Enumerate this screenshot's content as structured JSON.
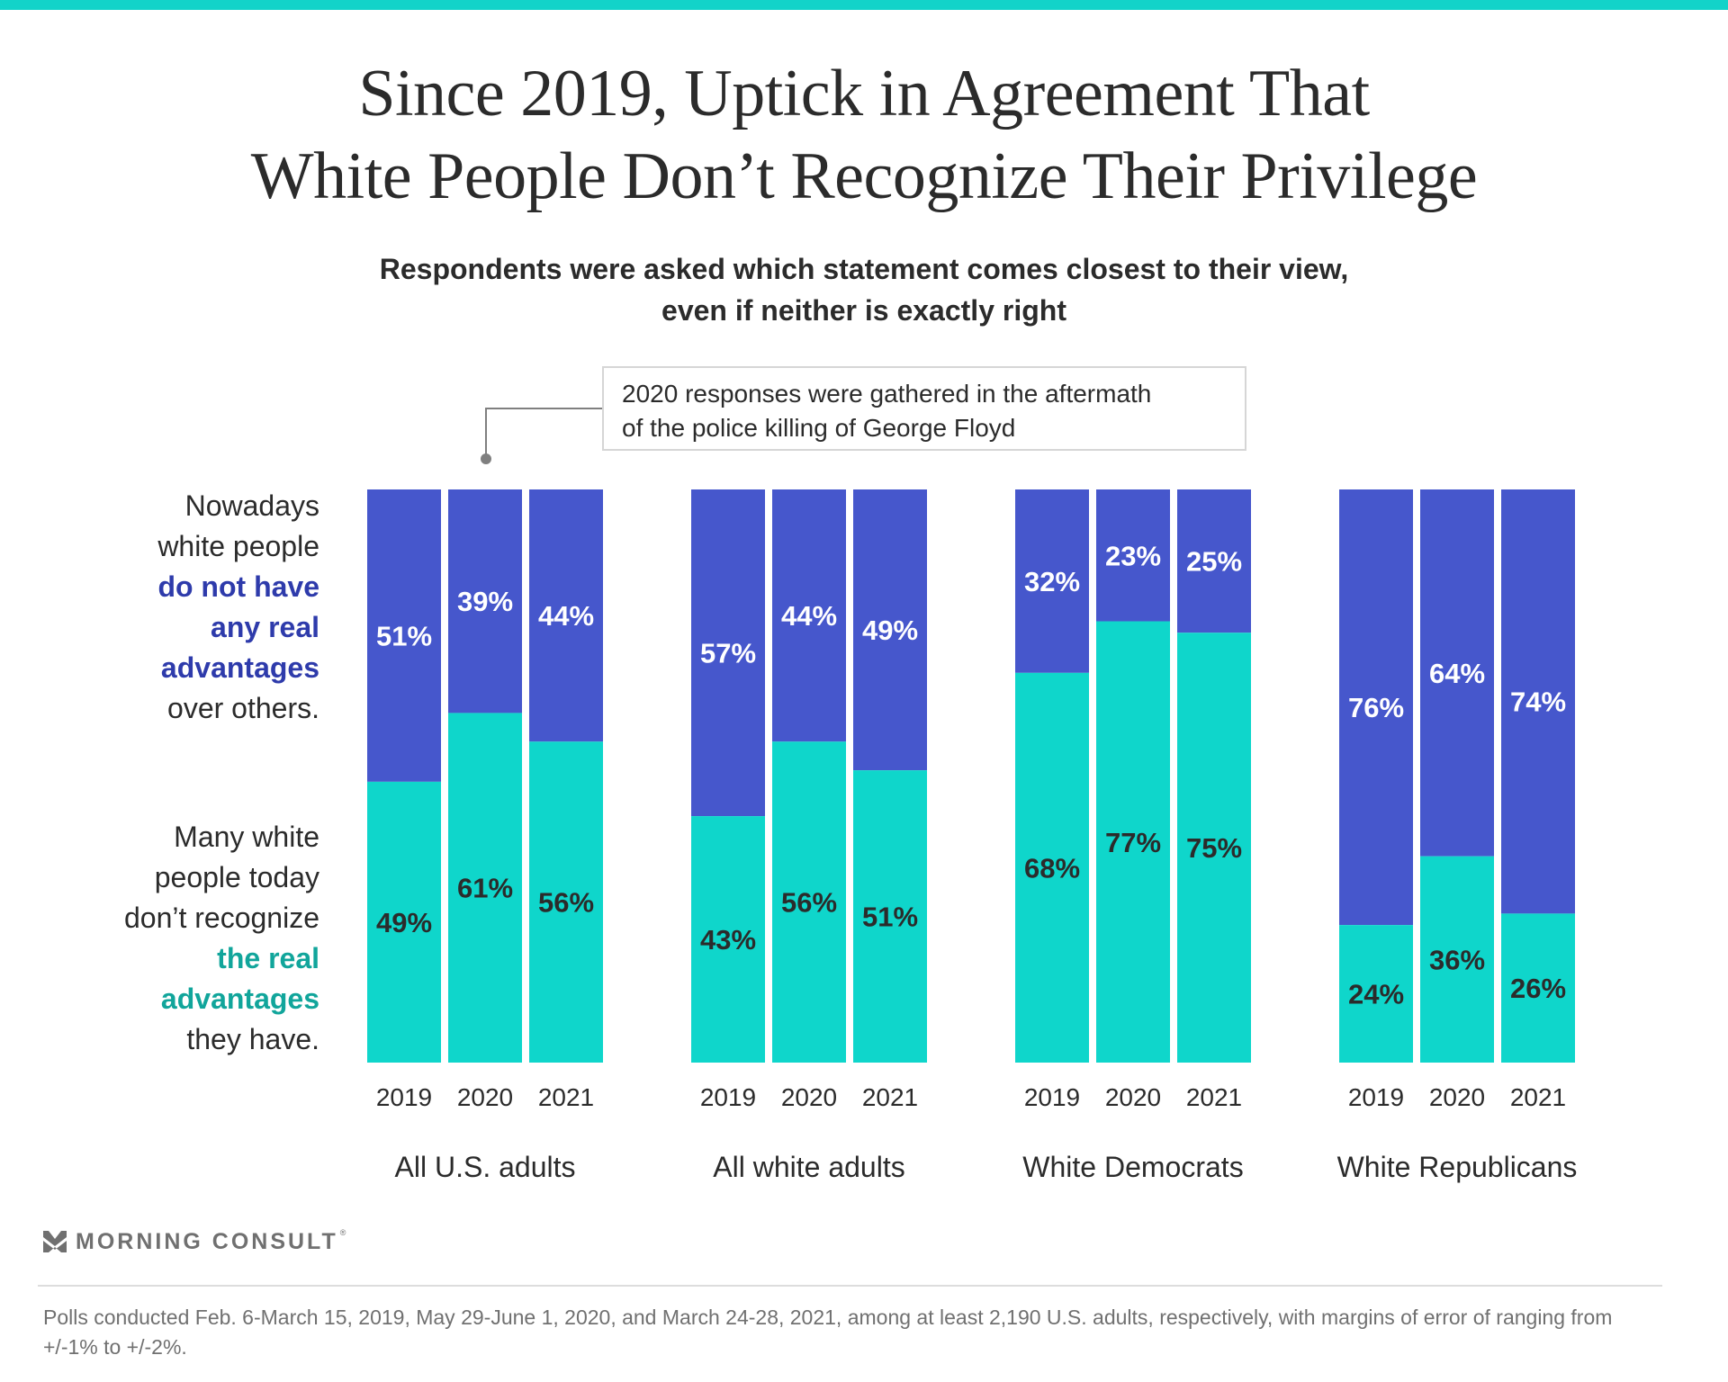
{
  "title": {
    "line1": "Since 2019, Uptick in Agreement That",
    "line2": "White People Don’t Recognize Their Privilege"
  },
  "subtitle": {
    "line1": "Respondents were asked which statement comes closest to their view,",
    "line2": "even if neither is exactly right"
  },
  "annotation": {
    "line1": "2020 responses were gathered in the aftermath",
    "line2": "of the police killing of George Floyd"
  },
  "legend": {
    "top": {
      "plain1": "Nowadays",
      "plain2": "white people",
      "bold1": "do not have",
      "bold2": "any real",
      "bold3": "advantages",
      "plain3": "over others."
    },
    "bottom": {
      "plain1": "Many white",
      "plain2": "people today",
      "plain3": "don’t recognize",
      "bold1": "the real",
      "bold2": "advantages",
      "plain4": "they have."
    }
  },
  "colors": {
    "no_advantages": "#4657cc",
    "dont_recognize": "#0fd6cb",
    "accent_bar": "#12d3c9",
    "label_on_blue": "#ffffff",
    "label_on_teal": "#2b2b2b"
  },
  "chart_data": {
    "type": "bar",
    "stacked": true,
    "normalized_to": 100,
    "title": "Since 2019, Uptick in Agreement That White People Don’t Recognize Their Privilege",
    "subtitle": "Respondents were asked which statement comes closest to their view, even if neither is exactly right",
    "xlabel": "",
    "ylabel": "",
    "ylim": [
      0,
      100
    ],
    "grid": false,
    "categories": [
      "2019",
      "2020",
      "2021"
    ],
    "groups": [
      {
        "name": "All U.S. adults",
        "series": [
          {
            "name": "Nowadays white people do not have any real advantages over others.",
            "values": [
              51,
              39,
              44
            ]
          },
          {
            "name": "Many white people today don’t recognize the real advantages they have.",
            "values": [
              49,
              61,
              56
            ]
          }
        ]
      },
      {
        "name": "All white adults",
        "series": [
          {
            "name": "Nowadays white people do not have any real advantages over others.",
            "values": [
              57,
              44,
              49
            ]
          },
          {
            "name": "Many white people today don’t recognize the real advantages they have.",
            "values": [
              43,
              56,
              51
            ]
          }
        ]
      },
      {
        "name": "White Democrats",
        "series": [
          {
            "name": "Nowadays white people do not have any real advantages over others.",
            "values": [
              32,
              23,
              25
            ]
          },
          {
            "name": "Many white people today don’t recognize the real advantages they have.",
            "values": [
              68,
              77,
              75
            ]
          }
        ]
      },
      {
        "name": "White Republicans",
        "series": [
          {
            "name": "Nowadays white people do not have any real advantages over others.",
            "values": [
              76,
              64,
              74
            ]
          },
          {
            "name": "Many white people today don’t recognize the real advantages they have.",
            "values": [
              24,
              36,
              26
            ]
          }
        ]
      }
    ],
    "value_suffix": "%",
    "annotation": "2020 responses were gathered in the aftermath of the police killing of George Floyd",
    "legend": "left"
  },
  "footer": {
    "logo_text": "MORNING CONSULT",
    "logo_mark": "®",
    "note": "Polls conducted Feb. 6-March 15, 2019, May 29-June 1, 2020, and March 24-28, 2021, among at least 2,190 U.S. adults, respectively, with margins of error of ranging from +/-1% to +/-2%."
  }
}
